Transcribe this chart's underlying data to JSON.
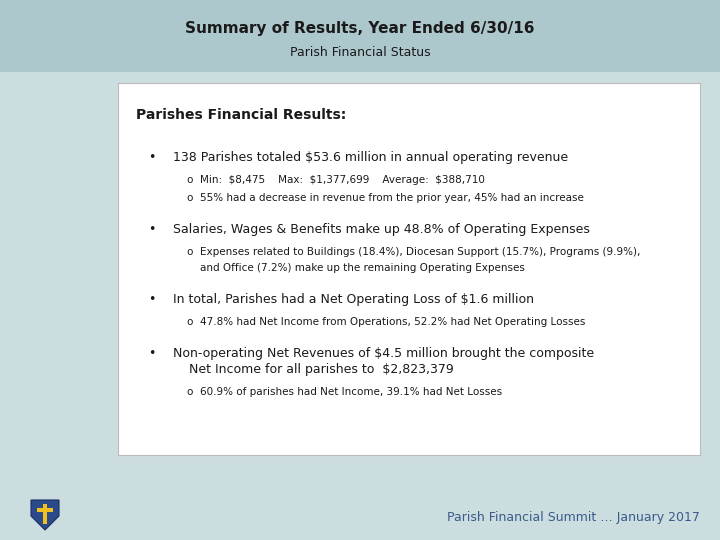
{
  "title_line1": "Summary of Results, Year Ended 6/30/16",
  "title_line2": "Parish Financial Status",
  "header_bg": "#adc8cc",
  "slide_bg": "#ccdde0",
  "content_bg": "#ffffff",
  "content_border": "#bbbbbb",
  "footer_text": "Parish Financial Summit … January 2017",
  "footer_color": "#3a5a8a",
  "section_header": "Parishes Financial Results:",
  "title1_fontsize": 11,
  "title2_fontsize": 9,
  "section_fontsize": 10,
  "bullet_fontsize": 9,
  "sub_fontsize": 7.5,
  "text_color": "#1a1a1a",
  "bullet1_main": "138 Parishes totaled $53.6 million in annual operating revenue",
  "bullet1_sub1": "Min:  $8,475    Max:  $1,377,699    Average:  $388,710",
  "bullet1_sub2": "55% had a decrease in revenue from the prior year, 45% had an increase",
  "bullet2_main": "Salaries, Wages & Benefits make up 48.8% of Operating Expenses",
  "bullet2_sub1a": "Expenses related to Buildings (18.4%), Diocesan Support (15.7%), Programs (9.9%),",
  "bullet2_sub1b": "and Office (7.2%) make up the remaining Operating Expenses",
  "bullet3_main": "In total, Parishes had a Net Operating Loss of $1.6 million",
  "bullet3_sub1": "47.8% had Net Income from Operations, 52.2% had Net Operating Losses",
  "bullet4_main1": "Non-operating Net Revenues of $4.5 million brought the composite",
  "bullet4_main2": "Net Income for all parishes to  $2,823,379",
  "bullet4_sub1": "60.9% of parishes had Net Income, 39.1% had Net Losses"
}
